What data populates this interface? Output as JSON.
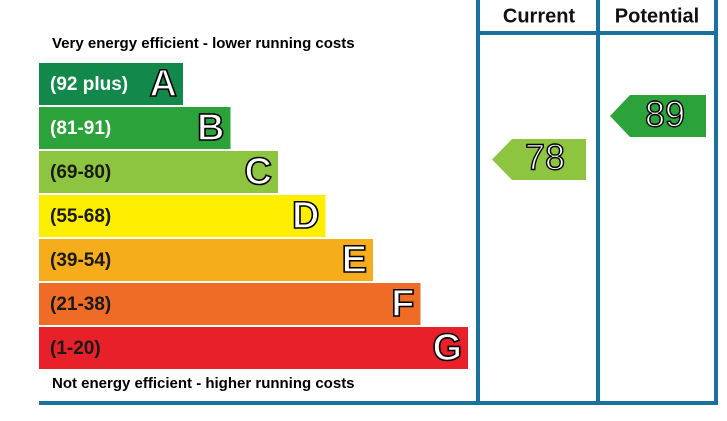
{
  "top_note": "Very energy efficient - lower running costs",
  "bottom_note": "Not energy efficient - higher running costs",
  "columns": [
    "Current",
    "Potential"
  ],
  "bands": [
    {
      "range": "(92 plus)",
      "letter": "A",
      "color": "#12884a",
      "text_color": "#ffffff"
    },
    {
      "range": "(81-91)",
      "letter": "B",
      "color": "#2ba23a",
      "text_color": "#ffffff"
    },
    {
      "range": "(69-80)",
      "letter": "C",
      "color": "#8dc540",
      "text_color": "#1a1a1a"
    },
    {
      "range": "(55-68)",
      "letter": "D",
      "color": "#fdee00",
      "text_color": "#1a1a1a"
    },
    {
      "range": "(39-54)",
      "letter": "E",
      "color": "#f6ad1c",
      "text_color": "#1a1a1a"
    },
    {
      "range": "(21-38)",
      "letter": "F",
      "color": "#ef6c27",
      "text_color": "#1a1a1a"
    },
    {
      "range": "(1-20)",
      "letter": "G",
      "color": "#e8202a",
      "text_color": "#1a1a1a"
    }
  ],
  "current": {
    "value": 78,
    "color": "#8dc540"
  },
  "potential": {
    "value": 89,
    "color": "#2ba23a"
  }
}
